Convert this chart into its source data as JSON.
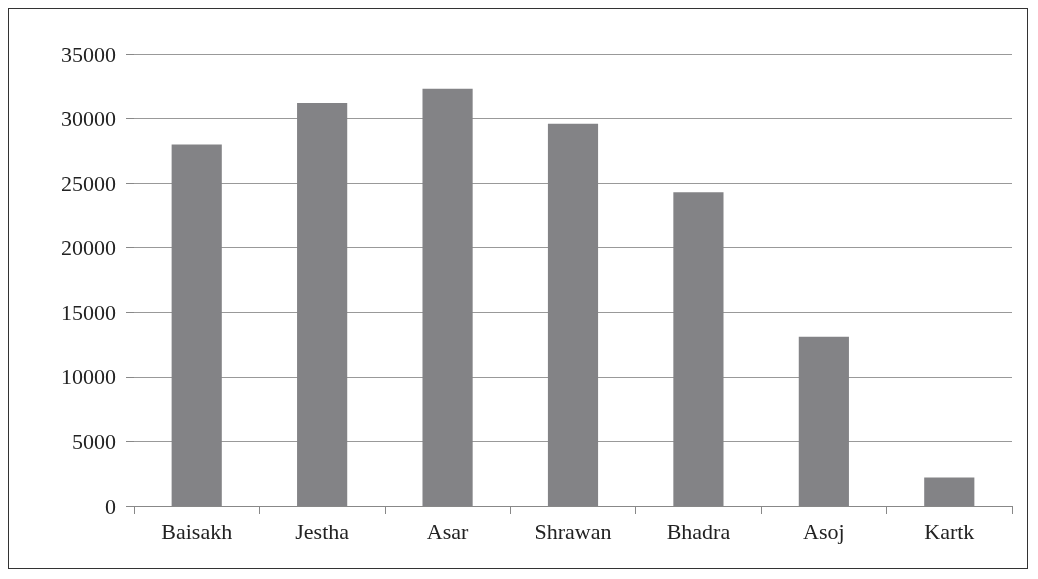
{
  "chart_data": {
    "type": "bar",
    "categories": [
      "Baisakh",
      "Jestha",
      "Asar",
      "Shrawan",
      "Bhadra",
      "Asoj",
      "Kartk"
    ],
    "values": [
      28000,
      31200,
      32300,
      29600,
      24300,
      13100,
      2200
    ],
    "color": "#838386",
    "ylim": [
      0,
      35000
    ],
    "yticks": [
      0,
      5000,
      10000,
      15000,
      20000,
      25000,
      30000,
      35000
    ],
    "grid": "y"
  }
}
